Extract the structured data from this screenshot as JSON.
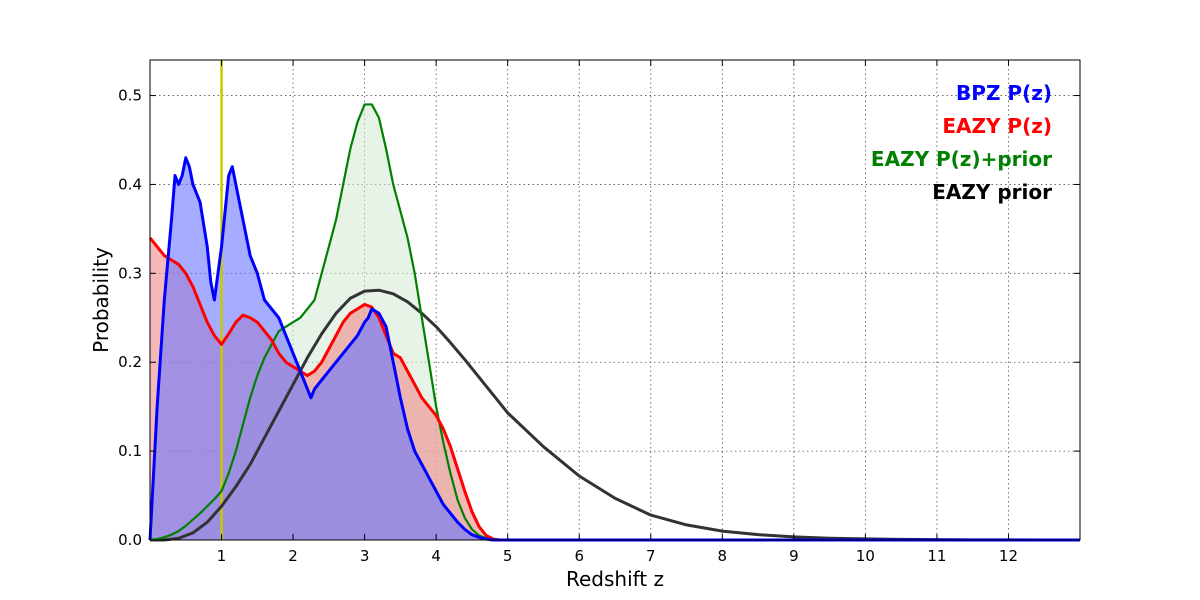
{
  "chart_data": {
    "type": "area",
    "xlabel": "Redshift z",
    "ylabel": "Probability",
    "xlim": [
      0,
      13
    ],
    "ylim": [
      0,
      0.54
    ],
    "xticks": [
      1,
      2,
      3,
      4,
      5,
      6,
      7,
      8,
      9,
      10,
      11,
      12
    ],
    "yticks": [
      0.0,
      0.1,
      0.2,
      0.3,
      0.4,
      0.5
    ],
    "ytick_labels": [
      "0.0",
      "0.1",
      "0.2",
      "0.3",
      "0.4",
      "0.5"
    ],
    "grid": true,
    "legend_placement": "top-right",
    "vertical_marker": {
      "x": 1.0,
      "color": "#c8c800"
    },
    "series": [
      {
        "name": "BPZ P(z)",
        "color": "#0000ff",
        "fill": "#6b74ff",
        "x": [
          0,
          0.1,
          0.2,
          0.3,
          0.35,
          0.4,
          0.45,
          0.5,
          0.55,
          0.6,
          0.7,
          0.8,
          0.85,
          0.9,
          0.95,
          1.0,
          1.05,
          1.1,
          1.15,
          1.2,
          1.3,
          1.4,
          1.5,
          1.6,
          1.7,
          1.8,
          1.9,
          2.0,
          2.1,
          2.2,
          2.25,
          2.3,
          2.4,
          2.5,
          2.6,
          2.7,
          2.8,
          2.9,
          3.0,
          3.05,
          3.1,
          3.2,
          3.3,
          3.4,
          3.5,
          3.6,
          3.7,
          3.8,
          3.9,
          4.0,
          4.1,
          4.2,
          4.3,
          4.4,
          4.5,
          4.6,
          4.7,
          4.8,
          5.0,
          13.0
        ],
        "y": [
          0.0,
          0.15,
          0.27,
          0.36,
          0.41,
          0.4,
          0.41,
          0.43,
          0.42,
          0.4,
          0.38,
          0.33,
          0.29,
          0.27,
          0.3,
          0.33,
          0.37,
          0.41,
          0.42,
          0.4,
          0.36,
          0.32,
          0.3,
          0.27,
          0.26,
          0.25,
          0.23,
          0.21,
          0.19,
          0.17,
          0.16,
          0.17,
          0.18,
          0.19,
          0.2,
          0.21,
          0.22,
          0.23,
          0.245,
          0.25,
          0.26,
          0.255,
          0.24,
          0.2,
          0.16,
          0.125,
          0.1,
          0.085,
          0.07,
          0.055,
          0.04,
          0.03,
          0.02,
          0.012,
          0.006,
          0.003,
          0.001,
          0.0,
          0.0,
          0.0
        ]
      },
      {
        "name": "EAZY P(z)",
        "color": "#ff0000",
        "fill": "#f08b8b",
        "x": [
          0,
          0.1,
          0.2,
          0.3,
          0.4,
          0.5,
          0.6,
          0.7,
          0.8,
          0.9,
          1.0,
          1.1,
          1.2,
          1.3,
          1.4,
          1.5,
          1.6,
          1.7,
          1.8,
          1.9,
          2.0,
          2.1,
          2.2,
          2.3,
          2.4,
          2.5,
          2.6,
          2.7,
          2.8,
          2.9,
          3.0,
          3.1,
          3.2,
          3.3,
          3.4,
          3.5,
          3.6,
          3.7,
          3.8,
          3.9,
          4.0,
          4.1,
          4.2,
          4.3,
          4.4,
          4.5,
          4.6,
          4.7,
          4.8,
          4.9,
          5.0,
          13.0
        ],
        "y": [
          0.34,
          0.33,
          0.32,
          0.315,
          0.31,
          0.3,
          0.285,
          0.265,
          0.245,
          0.23,
          0.22,
          0.232,
          0.245,
          0.253,
          0.25,
          0.245,
          0.235,
          0.225,
          0.21,
          0.2,
          0.195,
          0.19,
          0.185,
          0.19,
          0.2,
          0.215,
          0.23,
          0.245,
          0.255,
          0.26,
          0.265,
          0.262,
          0.25,
          0.23,
          0.21,
          0.205,
          0.19,
          0.175,
          0.16,
          0.15,
          0.14,
          0.125,
          0.105,
          0.08,
          0.055,
          0.032,
          0.015,
          0.005,
          0.001,
          0.0,
          0.0,
          0.0
        ]
      },
      {
        "name": "EAZY P(z)+prior",
        "color": "#008000",
        "fill": "#d4ead4",
        "x": [
          0,
          0.1,
          0.2,
          0.3,
          0.4,
          0.5,
          0.6,
          0.7,
          0.8,
          0.9,
          1.0,
          1.1,
          1.2,
          1.3,
          1.4,
          1.5,
          1.6,
          1.7,
          1.8,
          1.9,
          2.0,
          2.1,
          2.2,
          2.3,
          2.4,
          2.5,
          2.6,
          2.7,
          2.8,
          2.9,
          3.0,
          3.1,
          3.2,
          3.3,
          3.4,
          3.5,
          3.6,
          3.7,
          3.8,
          3.9,
          4.0,
          4.1,
          4.2,
          4.3,
          4.4,
          4.5,
          4.6,
          4.7,
          4.8,
          4.9,
          5.0,
          13.0
        ],
        "y": [
          0.0,
          0.001,
          0.003,
          0.006,
          0.01,
          0.016,
          0.023,
          0.03,
          0.038,
          0.046,
          0.055,
          0.075,
          0.1,
          0.13,
          0.16,
          0.185,
          0.205,
          0.22,
          0.235,
          0.24,
          0.245,
          0.25,
          0.26,
          0.27,
          0.3,
          0.33,
          0.36,
          0.4,
          0.44,
          0.47,
          0.49,
          0.49,
          0.475,
          0.44,
          0.4,
          0.37,
          0.34,
          0.3,
          0.25,
          0.2,
          0.15,
          0.11,
          0.075,
          0.045,
          0.025,
          0.012,
          0.005,
          0.002,
          0.001,
          0.0,
          0.0,
          0.0
        ]
      },
      {
        "name": "EAZY prior",
        "color": "#333333",
        "fill": null,
        "x": [
          0,
          0.2,
          0.4,
          0.6,
          0.8,
          1.0,
          1.2,
          1.4,
          1.6,
          1.8,
          2.0,
          2.2,
          2.4,
          2.6,
          2.8,
          3.0,
          3.2,
          3.4,
          3.6,
          3.8,
          4.0,
          4.2,
          4.4,
          4.6,
          4.8,
          5.0,
          5.5,
          6.0,
          6.5,
          7.0,
          7.5,
          8.0,
          8.5,
          9.0,
          9.5,
          10.0,
          10.5,
          11.0,
          11.5,
          12.0,
          12.5,
          13.0
        ],
        "y": [
          0.0,
          0.0,
          0.002,
          0.008,
          0.02,
          0.038,
          0.06,
          0.085,
          0.115,
          0.145,
          0.175,
          0.205,
          0.232,
          0.255,
          0.272,
          0.28,
          0.281,
          0.277,
          0.268,
          0.255,
          0.24,
          0.222,
          0.203,
          0.183,
          0.163,
          0.143,
          0.105,
          0.072,
          0.047,
          0.028,
          0.017,
          0.01,
          0.006,
          0.0035,
          0.002,
          0.0012,
          0.0007,
          0.0004,
          0.0002,
          0.0001,
          0.0,
          0.0
        ]
      }
    ]
  }
}
